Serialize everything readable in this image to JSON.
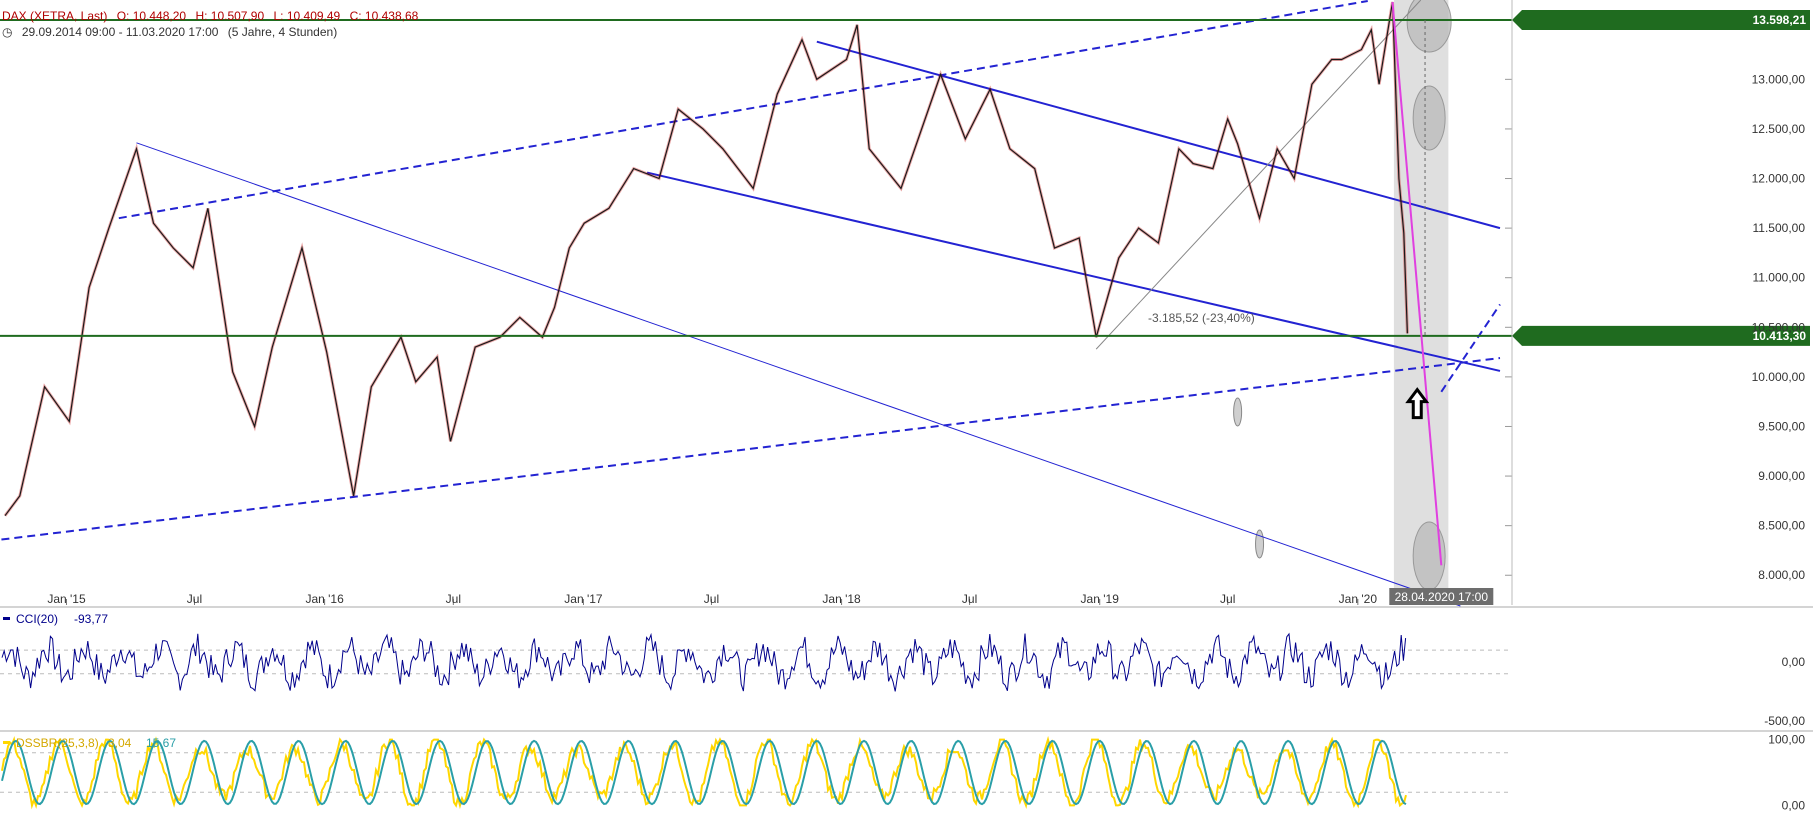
{
  "header": {
    "instrument": "DAX (XETRA, Last)",
    "open_label": "O: 10.448,20",
    "high_label": "H: 10.507,90",
    "low_label": "L: 10.409,49",
    "close_label": "C: 10.438,68",
    "range": "29.09.2014 09:00 - 11.03.2020 17:00",
    "period": "(5 Jahre, 4 Stunden)"
  },
  "colors": {
    "price": "#1a1a1a",
    "price_alt": "#c00000",
    "trend": "#2323d2",
    "level": "#1f6b1f",
    "forecast": "#e040e0",
    "cci": "#00008b",
    "dss_fast": "#ffd700",
    "dss_slow": "#2a9fa8"
  },
  "chart_data": [
    {
      "type": "line",
      "title": "DAX (XETRA, Last)",
      "ylim": [
        7700,
        13800
      ],
      "y_ticks": [
        "8.000,00",
        "8.500,00",
        "9.000,00",
        "9.500,00",
        "10.000,00",
        "10.500,00",
        "11.000,00",
        "11.500,00",
        "12.000,00",
        "12.500,00",
        "13.000,00"
      ],
      "y_tick_values": [
        8000,
        8500,
        9000,
        9500,
        10000,
        10500,
        11000,
        11500,
        12000,
        12500,
        13000
      ],
      "x_ticks": [
        "Jan '15",
        "Jul",
        "Jan '16",
        "Jul",
        "Jan '17",
        "Jul",
        "Jan '18",
        "Jul",
        "Jan '19",
        "Jul",
        "Jan '20"
      ],
      "x_tick_dates": [
        "2015-01-01",
        "2015-07-01",
        "2016-01-01",
        "2016-07-01",
        "2017-01-01",
        "2017-07-01",
        "2018-01-01",
        "2018-07-01",
        "2019-01-01",
        "2019-07-01",
        "2020-01-01"
      ],
      "x_range": [
        "2014-09-29",
        "2020-07-20"
      ],
      "levels": [
        {
          "label": "13.598,21",
          "value": 13598.21
        },
        {
          "label": "10.413,30",
          "value": 10413.3
        }
      ],
      "measure_label": "-3.185,52 (-23,40%)",
      "crosshair_label": "28.04.2020 17:00",
      "series": [
        {
          "x": [
            "2014-10-06",
            "2014-10-27",
            "2014-12-01",
            "2015-01-05",
            "2015-02-02",
            "2015-03-02",
            "2015-04-10",
            "2015-05-04",
            "2015-06-01",
            "2015-06-29",
            "2015-07-20",
            "2015-08-24",
            "2015-09-24",
            "2015-10-19",
            "2015-11-30",
            "2016-01-04",
            "2016-02-11",
            "2016-03-07",
            "2016-04-18",
            "2016-05-09",
            "2016-06-08",
            "2016-06-27",
            "2016-08-01",
            "2016-09-05",
            "2016-10-03",
            "2016-11-04",
            "2016-11-21",
            "2016-12-12",
            "2017-01-02",
            "2017-02-06",
            "2017-03-13",
            "2017-04-18",
            "2017-05-15",
            "2017-06-19",
            "2017-07-17",
            "2017-08-29",
            "2017-10-02",
            "2017-11-06",
            "2017-11-27",
            "2018-01-08",
            "2018-01-23",
            "2018-02-09",
            "2018-03-26",
            "2018-05-21",
            "2018-06-25",
            "2018-07-30",
            "2018-08-27",
            "2018-10-01",
            "2018-10-29",
            "2018-12-03",
            "2018-12-27",
            "2019-01-28",
            "2019-02-25",
            "2019-03-25",
            "2019-04-23",
            "2019-05-13",
            "2019-06-10",
            "2019-07-01",
            "2019-07-15",
            "2019-08-15",
            "2019-09-09",
            "2019-10-03",
            "2019-10-28",
            "2019-11-25",
            "2019-12-09",
            "2020-01-06",
            "2020-01-20",
            "2020-01-31",
            "2020-02-19",
            "2020-02-28",
            "2020-03-06",
            "2020-03-11"
          ],
          "values": [
            8600,
            8800,
            9900,
            9550,
            10900,
            11500,
            12300,
            11550,
            11300,
            11100,
            11700,
            10050,
            9500,
            10300,
            11300,
            10250,
            8800,
            9900,
            10400,
            9950,
            10200,
            9350,
            10300,
            10400,
            10600,
            10400,
            10700,
            11300,
            11550,
            11700,
            12100,
            12000,
            12700,
            12500,
            12300,
            11900,
            12850,
            13400,
            13000,
            13200,
            13550,
            12300,
            11900,
            13050,
            12400,
            12900,
            12300,
            12100,
            11300,
            11400,
            10400,
            11200,
            11500,
            11350,
            12300,
            12150,
            12100,
            12600,
            12350,
            11600,
            12300,
            12000,
            12950,
            13200,
            13200,
            13300,
            13500,
            12950,
            13780,
            12000,
            11450,
            10438.68
          ]
        }
      ]
    },
    {
      "type": "line",
      "title": "CCI(20)",
      "value_label": "-93,77",
      "ylim": [
        -560,
        440
      ],
      "y_ticks": [
        "0,00",
        "-500,00"
      ],
      "y_tick_values": [
        0,
        -500
      ]
    },
    {
      "type": "line",
      "title": "DSSBR(25,3,8)",
      "value_label_1": "3,04",
      "value_label_2": "15,67",
      "ylim": [
        -10,
        110
      ],
      "y_ticks": [
        "100,00",
        "0,00"
      ],
      "y_tick_values": [
        100,
        0
      ]
    }
  ]
}
